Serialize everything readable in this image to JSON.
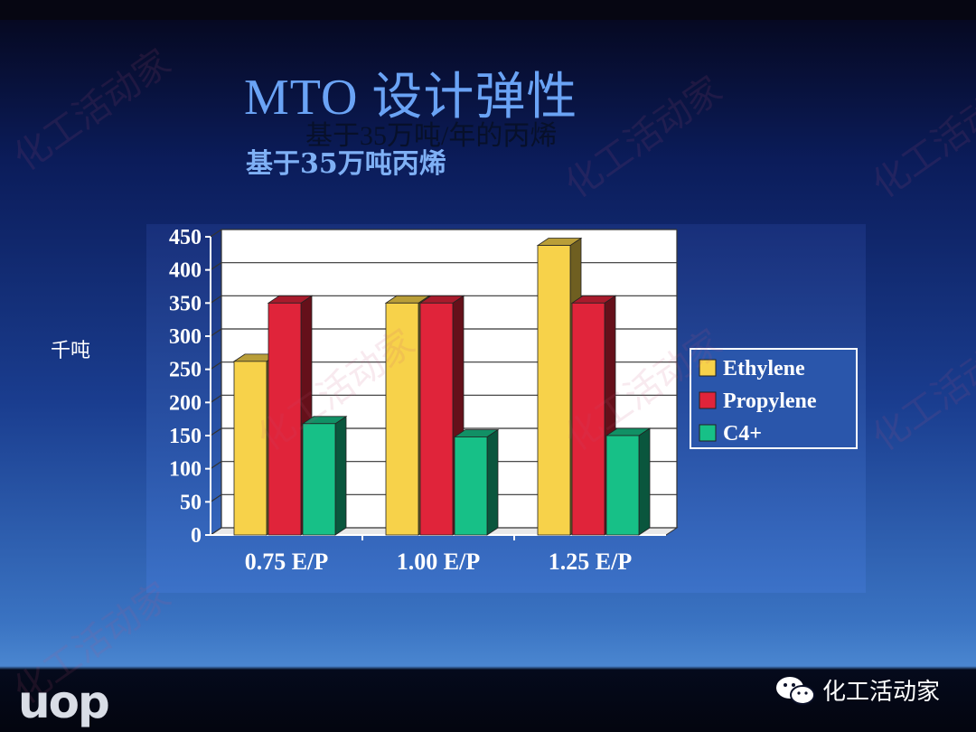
{
  "slide": {
    "title": "MTO 设计弹性",
    "subtitle_overlay": "基于35万吨/年的丙烯",
    "subtitle": "基于35万吨丙烯",
    "y_unit_label": "千吨",
    "logo_text": "uop",
    "brand_text": "化工活动家",
    "watermark_text": "化工活动家"
  },
  "chart_data": {
    "type": "bar",
    "title": "",
    "xlabel": "",
    "ylabel": "千吨",
    "ylim": [
      0,
      450
    ],
    "yticks": [
      "0",
      "50",
      "100",
      "150",
      "200",
      "250",
      "300",
      "350",
      "400",
      "450"
    ],
    "categories": [
      "0.75 E/P",
      "1.00 E/P",
      "1.25 E/P"
    ],
    "series": [
      {
        "name": "Ethylene",
        "color": "#f7d24a",
        "values": [
          262,
          350,
          437
        ]
      },
      {
        "name": "Propylene",
        "color": "#e0243a",
        "values": [
          350,
          350,
          350
        ]
      },
      {
        "name": "C4+",
        "color": "#17c087",
        "values": [
          168,
          148,
          150
        ]
      }
    ],
    "grid": true,
    "legend": "right"
  }
}
